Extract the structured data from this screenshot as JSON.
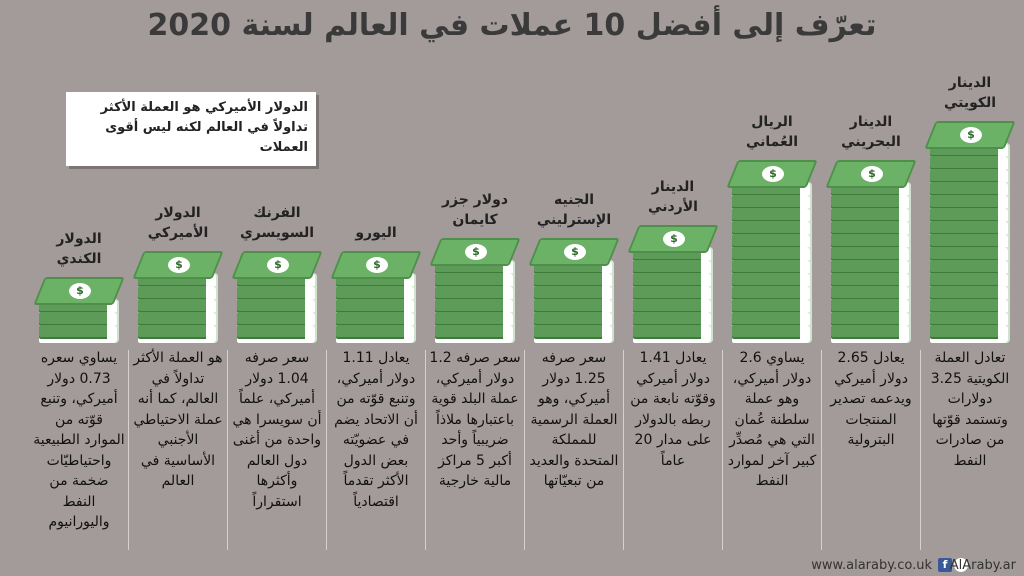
{
  "title": "تعرّف إلى أفضل 10 عملات في العالم لسنة 2020",
  "note": "الدولار الأميركي هو العملة الأكثر تداولاً في العالم لكنه ليس أقوى العملات",
  "footer": {
    "site": "www.alaraby.co.uk",
    "handle": "AlAraby.ar",
    "fb_icon": "f"
  },
  "icons": {
    "currency_symbol": "$"
  },
  "colors": {
    "background": "#a39a9a",
    "bill_green": "#5c9c58",
    "note_bg": "#ffffff"
  },
  "chart_data": {
    "type": "bar",
    "title": "تعرّف إلى أفضل 10 عملات في العالم لسنة 2020",
    "unit": "دولار أميركي",
    "categories": [
      "الدينار الكويتي",
      "الدينار البحريني",
      "الريال العُماني",
      "الدينار الأردني",
      "الجنيه الإسترليني",
      "دولار جزر كايمان",
      "اليورو",
      "الفرنك السويسري",
      "الدولار الأميركي",
      "الدولار الكندي"
    ],
    "values": [
      3.25,
      2.65,
      2.6,
      1.41,
      1.25,
      1.2,
      1.11,
      1.04,
      1,
      0.73
    ],
    "names_display": [
      "الدينار\nالكويتي",
      "الدينار\nالبحريني",
      "الريال\nالعُماني",
      "الدينار\nالأردني",
      "الجنيه\nالإسترليني",
      "دولار جزر\nكايمان",
      "اليورو",
      "الفرنك\nالسويسري",
      "الدولار\nالأميركي",
      "الدولار\nالكندي"
    ],
    "descriptions": [
      "تعادل العملة الكويتية 3.25 دولارات وتستمد قوّتها من صادرات النفط",
      "يعادل 2.65 دولار أميركي ويدعمه تصدير المنتجات البترولية",
      "يساوي 2.6 دولار أميركي، وهو عملة سلطنة عُمان التي هي مُصدِّر كبير آخر لموارد النفط",
      "يعادل 1.41 دولار أميركي وقوّته نابعة من ربطه بالدولار على مدار 20 عاماً",
      "سعر صرفه 1.25 دولار أميركي، وهو العملة الرسمية للمملكة المتحدة والعديد من تبعيّاتها",
      "سعر صرفه 1.2 دولار أميركي، عملة البلد قوية باعتبارها ملاذاً ضريبياً وأحد أكبر 5 مراكز مالية خارجية",
      "يعادل 1.11 دولار أميركي، وتنبع قوّته من أن الاتحاد يضم في عضويّته بعض الدول الأكثر تقدماً اقتصادياً",
      "سعر صرفه 1.04 دولار أميركي، علماً أن سويسرا هي واحدة من أغنى دول العالم وأكثرها استقراراً",
      "هو العملة الأكثر تداولاً في العالم، كما أنه عملة الاحتياطي الأجنبي الأساسية في العالم",
      "يساوي سعره 0.73 دولار أميركي، وتنبع قوّته من الموارد الطبيعية واحتياطيّات ضخمة من النفط واليورانيوم"
    ]
  }
}
